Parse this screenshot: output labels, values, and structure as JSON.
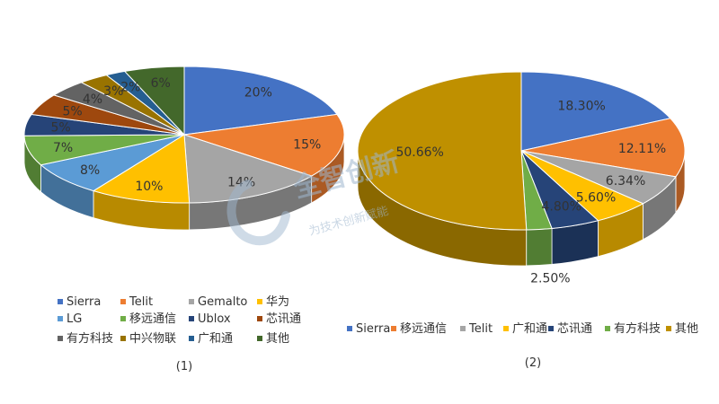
{
  "chart_data": [
    {
      "type": "pie",
      "caption": "(1)",
      "categories": [
        "Sierra",
        "Telit",
        "Gemalto",
        "华为",
        "LG",
        "移远通信",
        "Ublox",
        "芯讯通",
        "有方科技",
        "中兴物联",
        "广和通",
        "其他"
      ],
      "values": [
        20,
        15,
        14,
        10,
        8,
        7,
        5,
        5,
        4,
        3,
        2,
        6
      ],
      "data_labels": [
        "20%",
        "15%",
        "14%",
        "10%",
        "8%",
        "7%",
        "5%",
        "5%",
        "4%",
        "3%",
        "2%",
        "6%"
      ],
      "colors": [
        "#4472C4",
        "#ED7D31",
        "#A5A5A5",
        "#FFC000",
        "#5B9BD5",
        "#70AD47",
        "#264478",
        "#9E480E",
        "#636363",
        "#997300",
        "#255E91",
        "#43682B"
      ],
      "legend_position": "bottom"
    },
    {
      "type": "pie",
      "caption": "(2)",
      "categories": [
        "Sierra",
        "移远通信",
        "Telit",
        "广和通",
        "芯讯通",
        "有方科技",
        "其他"
      ],
      "values": [
        18.3,
        12.11,
        6.34,
        5.6,
        4.8,
        2.5,
        50.66
      ],
      "data_labels": [
        "18.30%",
        "12.11%",
        "6.34%",
        "5.60%",
        "4.80%",
        "2.50%",
        "50.66%"
      ],
      "colors": [
        "#4472C4",
        "#ED7D31",
        "#A5A5A5",
        "#FFC000",
        "#264478",
        "#70AD47",
        "#BF9000"
      ],
      "legend_position": "bottom"
    }
  ],
  "watermark": {
    "main": "全智创新",
    "sub": "为技术创新赋能"
  }
}
